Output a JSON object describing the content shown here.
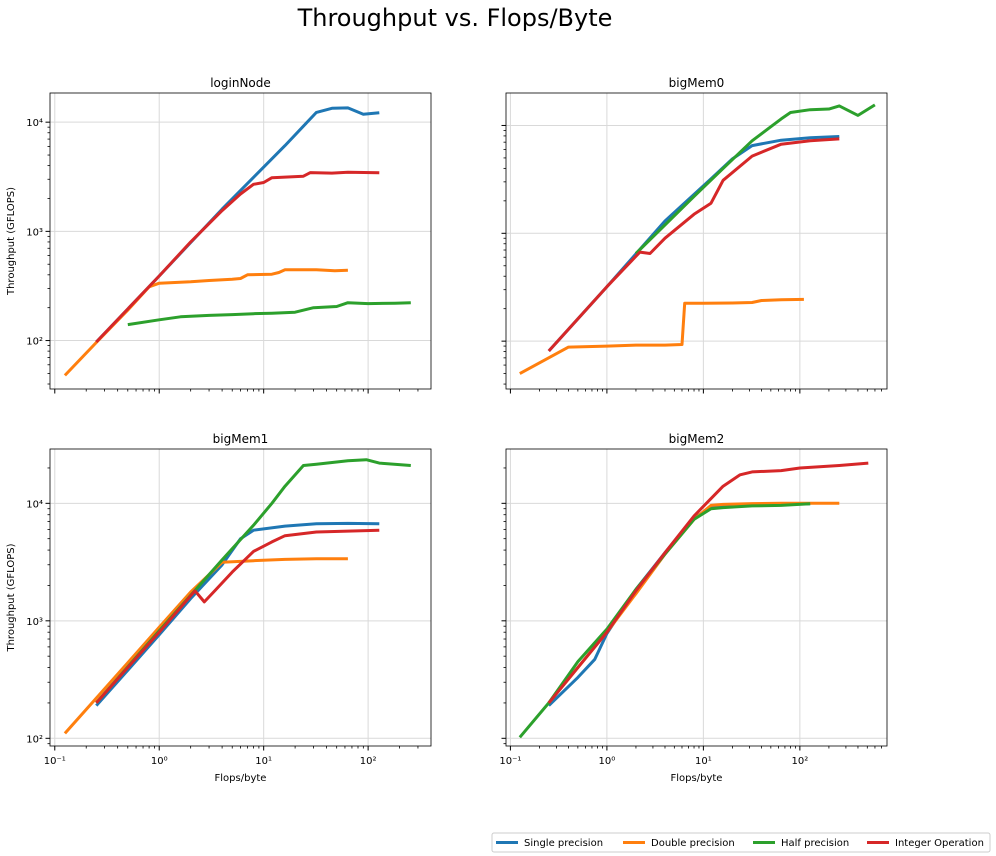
{
  "figure": {
    "title": "Throughput vs. Flops/Byte",
    "legend": {
      "placement": "bottom-right",
      "entries": [
        {
          "label": "Single precision",
          "color": "#1f77b4"
        },
        {
          "label": "Double precision",
          "color": "#ff7f0e"
        },
        {
          "label": "Half precision",
          "color": "#2ca02c"
        },
        {
          "label": "Integer Operation",
          "color": "#d62728"
        }
      ]
    }
  },
  "chart_data": [
    {
      "type": "line",
      "title": "loginNode",
      "xlabel": "",
      "ylabel": "Throughput (GFLOPS)",
      "xscale": "log",
      "yscale": "log",
      "xlim": [
        0.09,
        400
      ],
      "ylim": [
        36,
        18500
      ],
      "xticks": [
        0.1,
        1,
        10,
        100
      ],
      "xtick_labels": [
        "",
        "",
        "",
        ""
      ],
      "yticks": [
        100,
        1000,
        10000
      ],
      "ytick_labels": [
        "10²",
        "10³",
        "10⁴"
      ],
      "grid": true,
      "series": [
        {
          "name": "Single precision",
          "color": "#1f77b4",
          "points": [
            [
              0.25,
              97
            ],
            [
              1,
              390
            ],
            [
              4,
              1600
            ],
            [
              16,
              6100
            ],
            [
              32,
              12300
            ],
            [
              45,
              13400
            ],
            [
              64,
              13500
            ],
            [
              90,
              11800
            ],
            [
              128,
              12200
            ]
          ]
        },
        {
          "name": "Double precision",
          "color": "#ff7f0e",
          "points": [
            [
              0.125,
              48
            ],
            [
              0.25,
              96
            ],
            [
              0.5,
              190
            ],
            [
              0.8,
              310
            ],
            [
              1,
              335
            ],
            [
              2,
              345
            ],
            [
              3,
              355
            ],
            [
              5,
              365
            ],
            [
              6,
              370
            ],
            [
              7,
              400
            ],
            [
              12,
              405
            ],
            [
              14,
              420
            ],
            [
              16,
              445
            ],
            [
              32,
              445
            ],
            [
              48,
              435
            ],
            [
              64,
              440
            ]
          ]
        },
        {
          "name": "Half precision",
          "color": "#2ca02c",
          "points": [
            [
              0.5,
              140
            ],
            [
              1,
              155
            ],
            [
              1.6,
              165
            ],
            [
              3,
              170
            ],
            [
              5,
              173
            ],
            [
              8,
              176
            ],
            [
              12,
              178
            ],
            [
              20,
              182
            ],
            [
              30,
              200
            ],
            [
              50,
              205
            ],
            [
              64,
              222
            ],
            [
              100,
              218
            ],
            [
              180,
              220
            ],
            [
              256,
              222
            ]
          ]
        },
        {
          "name": "Integer Operation",
          "color": "#d62728",
          "points": [
            [
              0.25,
              97
            ],
            [
              1,
              390
            ],
            [
              2,
              800
            ],
            [
              4,
              1550
            ],
            [
              6,
              2200
            ],
            [
              8,
              2700
            ],
            [
              10,
              2800
            ],
            [
              12,
              3100
            ],
            [
              24,
              3200
            ],
            [
              28,
              3450
            ],
            [
              45,
              3420
            ],
            [
              64,
              3480
            ],
            [
              128,
              3440
            ]
          ]
        }
      ]
    },
    {
      "type": "line",
      "title": "bigMem0",
      "xlabel": "",
      "ylabel": "",
      "xscale": "log",
      "yscale": "log",
      "xlim": [
        0.09,
        800
      ],
      "ylim": [
        36,
        20000
      ],
      "xticks": [
        0.1,
        1,
        10,
        100
      ],
      "xtick_labels": [
        "",
        "",
        "",
        ""
      ],
      "yticks": [
        100,
        1000,
        10000
      ],
      "ytick_labels": [
        "",
        "",
        ""
      ],
      "grid": true,
      "series": [
        {
          "name": "Single precision",
          "color": "#1f77b4",
          "points": [
            [
              0.25,
              81
            ],
            [
              1,
              320
            ],
            [
              4,
              1300
            ],
            [
              12,
              3200
            ],
            [
              20,
              4900
            ],
            [
              32,
              6500
            ],
            [
              64,
              7300
            ],
            [
              128,
              7700
            ],
            [
              256,
              7900
            ]
          ]
        },
        {
          "name": "Double precision",
          "color": "#ff7f0e",
          "points": [
            [
              0.125,
              50
            ],
            [
              0.4,
              88
            ],
            [
              1,
              90
            ],
            [
              2,
              92
            ],
            [
              4,
              92
            ],
            [
              6,
              93
            ],
            [
              6.4,
              225
            ],
            [
              10,
              225
            ],
            [
              20,
              226
            ],
            [
              32,
              228
            ],
            [
              40,
              238
            ],
            [
              64,
              242
            ],
            [
              110,
              244
            ]
          ]
        },
        {
          "name": "Half precision",
          "color": "#2ca02c",
          "points": [
            [
              2,
              650
            ],
            [
              8,
              2200
            ],
            [
              16,
              4000
            ],
            [
              32,
              7200
            ],
            [
              64,
              11500
            ],
            [
              80,
              13200
            ],
            [
              128,
              14000
            ],
            [
              200,
              14200
            ],
            [
              256,
              15200
            ],
            [
              400,
              12400
            ],
            [
              600,
              15500
            ]
          ]
        },
        {
          "name": "Integer Operation",
          "color": "#d62728",
          "points": [
            [
              0.25,
              81
            ],
            [
              1,
              320
            ],
            [
              2.2,
              670
            ],
            [
              2.8,
              650
            ],
            [
              4,
              900
            ],
            [
              8,
              1500
            ],
            [
              12,
              1900
            ],
            [
              16,
              3100
            ],
            [
              32,
              5200
            ],
            [
              64,
              6700
            ],
            [
              128,
              7200
            ],
            [
              256,
              7500
            ]
          ]
        }
      ]
    },
    {
      "type": "line",
      "title": "bigMem1",
      "xlabel": "Flops/byte",
      "ylabel": "Throughput (GFLOPS)",
      "xscale": "log",
      "yscale": "log",
      "xlim": [
        0.09,
        400
      ],
      "ylim": [
        86,
        29000
      ],
      "xticks": [
        0.1,
        1,
        10,
        100
      ],
      "xtick_labels": [
        "10⁻¹",
        "10⁰",
        "10¹",
        "10²"
      ],
      "yticks": [
        100,
        1000,
        10000
      ],
      "ytick_labels": [
        "10²",
        "10³",
        "10⁴"
      ],
      "grid": true,
      "series": [
        {
          "name": "Single precision",
          "color": "#1f77b4",
          "points": [
            [
              0.25,
              190
            ],
            [
              0.5,
              380
            ],
            [
              1,
              760
            ],
            [
              2,
              1550
            ],
            [
              4,
              3000
            ],
            [
              6,
              5000
            ],
            [
              8,
              5900
            ],
            [
              16,
              6400
            ],
            [
              32,
              6700
            ],
            [
              64,
              6750
            ],
            [
              128,
              6700
            ]
          ]
        },
        {
          "name": "Double precision",
          "color": "#ff7f0e",
          "points": [
            [
              0.125,
              110
            ],
            [
              0.25,
              220
            ],
            [
              0.5,
              440
            ],
            [
              1,
              880
            ],
            [
              2,
              1760
            ],
            [
              4,
              3150
            ],
            [
              8,
              3250
            ],
            [
              16,
              3330
            ],
            [
              32,
              3370
            ],
            [
              64,
              3380
            ]
          ]
        },
        {
          "name": "Half precision",
          "color": "#2ca02c",
          "points": [
            [
              0.25,
              200
            ],
            [
              1,
              820
            ],
            [
              4,
              3300
            ],
            [
              8,
              6500
            ],
            [
              12,
              10000
            ],
            [
              16,
              14000
            ],
            [
              24,
              21000
            ],
            [
              32,
              21500
            ],
            [
              64,
              23000
            ],
            [
              96,
              23500
            ],
            [
              128,
              22000
            ],
            [
              256,
              21000
            ]
          ]
        },
        {
          "name": "Integer Operation",
          "color": "#d62728",
          "points": [
            [
              0.25,
              200
            ],
            [
              1,
              800
            ],
            [
              2.2,
              1800
            ],
            [
              2.7,
              1450
            ],
            [
              3.5,
              1850
            ],
            [
              5,
              2600
            ],
            [
              8,
              3900
            ],
            [
              12,
              4700
            ],
            [
              16,
              5300
            ],
            [
              32,
              5700
            ],
            [
              64,
              5800
            ],
            [
              128,
              5900
            ]
          ]
        }
      ]
    },
    {
      "type": "line",
      "title": "bigMem2",
      "xlabel": "Flops/byte",
      "ylabel": "",
      "xscale": "log",
      "yscale": "log",
      "xlim": [
        0.09,
        800
      ],
      "ylim": [
        86,
        29000
      ],
      "xticks": [
        0.1,
        1,
        10,
        100
      ],
      "xtick_labels": [
        "10⁻¹",
        "10⁰",
        "10¹",
        "10²"
      ],
      "yticks": [
        100,
        1000,
        10000
      ],
      "ytick_labels": [
        "",
        "",
        ""
      ],
      "grid": true,
      "series": [
        {
          "name": "Single precision",
          "color": "#1f77b4",
          "points": [
            [
              0.25,
              190
            ],
            [
              0.5,
              330
            ],
            [
              0.75,
              470
            ],
            [
              1,
              780
            ],
            [
              2,
              1850
            ],
            [
              4,
              3800
            ],
            [
              8,
              7500
            ],
            [
              12,
              9200
            ],
            [
              20,
              9700
            ],
            [
              64,
              9800
            ],
            [
              128,
              9900
            ]
          ]
        },
        {
          "name": "Double precision",
          "color": "#ff7f0e",
          "points": [
            [
              0.25,
              200
            ],
            [
              1,
              800
            ],
            [
              2,
              1700
            ],
            [
              4,
              3700
            ],
            [
              8,
              7300
            ],
            [
              12,
              9600
            ],
            [
              16,
              9800
            ],
            [
              32,
              9950
            ],
            [
              64,
              10000
            ],
            [
              128,
              10000
            ],
            [
              256,
              10000
            ]
          ]
        },
        {
          "name": "Half precision",
          "color": "#2ca02c",
          "points": [
            [
              0.125,
              102
            ],
            [
              0.25,
              200
            ],
            [
              0.5,
              450
            ],
            [
              1,
              850
            ],
            [
              2,
              1850
            ],
            [
              4,
              3700
            ],
            [
              8,
              7300
            ],
            [
              12,
              9000
            ],
            [
              16,
              9200
            ],
            [
              32,
              9500
            ],
            [
              64,
              9600
            ],
            [
              128,
              9900
            ]
          ]
        },
        {
          "name": "Integer Operation",
          "color": "#d62728",
          "points": [
            [
              0.25,
              200
            ],
            [
              1,
              800
            ],
            [
              2,
              1800
            ],
            [
              4,
              3800
            ],
            [
              8,
              7800
            ],
            [
              16,
              14000
            ],
            [
              24,
              17500
            ],
            [
              32,
              18500
            ],
            [
              64,
              19000
            ],
            [
              100,
              20000
            ],
            [
              256,
              21000
            ],
            [
              512,
              22000
            ]
          ]
        }
      ]
    }
  ]
}
